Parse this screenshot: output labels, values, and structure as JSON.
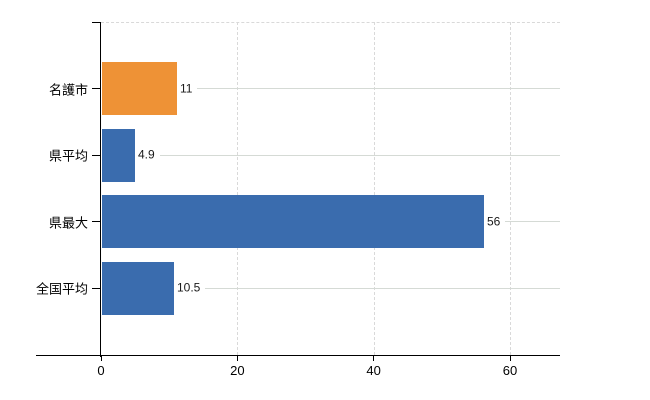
{
  "chart_data": {
    "type": "bar",
    "orientation": "horizontal",
    "title": "",
    "xlabel": "",
    "ylabel": "",
    "categories": [
      "名護市",
      "県平均",
      "県最大",
      "全国平均"
    ],
    "values": [
      11,
      4.9,
      56,
      10.5
    ],
    "value_labels": [
      "11",
      "4.9",
      "56",
      "10.5"
    ],
    "series": [
      {
        "name": "名護市",
        "value": 11,
        "color": "#EE9236"
      },
      {
        "name": "県平均",
        "value": 4.9,
        "color": "#3A6CAE"
      },
      {
        "name": "県最大",
        "value": 56,
        "color": "#3A6CAE"
      },
      {
        "name": "全国平均",
        "value": 10.5,
        "color": "#3A6CAE"
      }
    ],
    "x_ticks": [
      0,
      20,
      40,
      60
    ],
    "x_tick_labels": [
      "0",
      "20",
      "40",
      "60"
    ],
    "xlim": [
      0,
      67.3
    ],
    "grid": "vertical-dashed",
    "legend": "none",
    "colors": {
      "highlight_bar": "#EE9236",
      "default_bar": "#3A6CAE",
      "gridline": "#D9D9D9",
      "leader_line": "#D5DAD5",
      "axis": "#000000",
      "text": "#000000",
      "background": "#FFFFFF"
    }
  }
}
